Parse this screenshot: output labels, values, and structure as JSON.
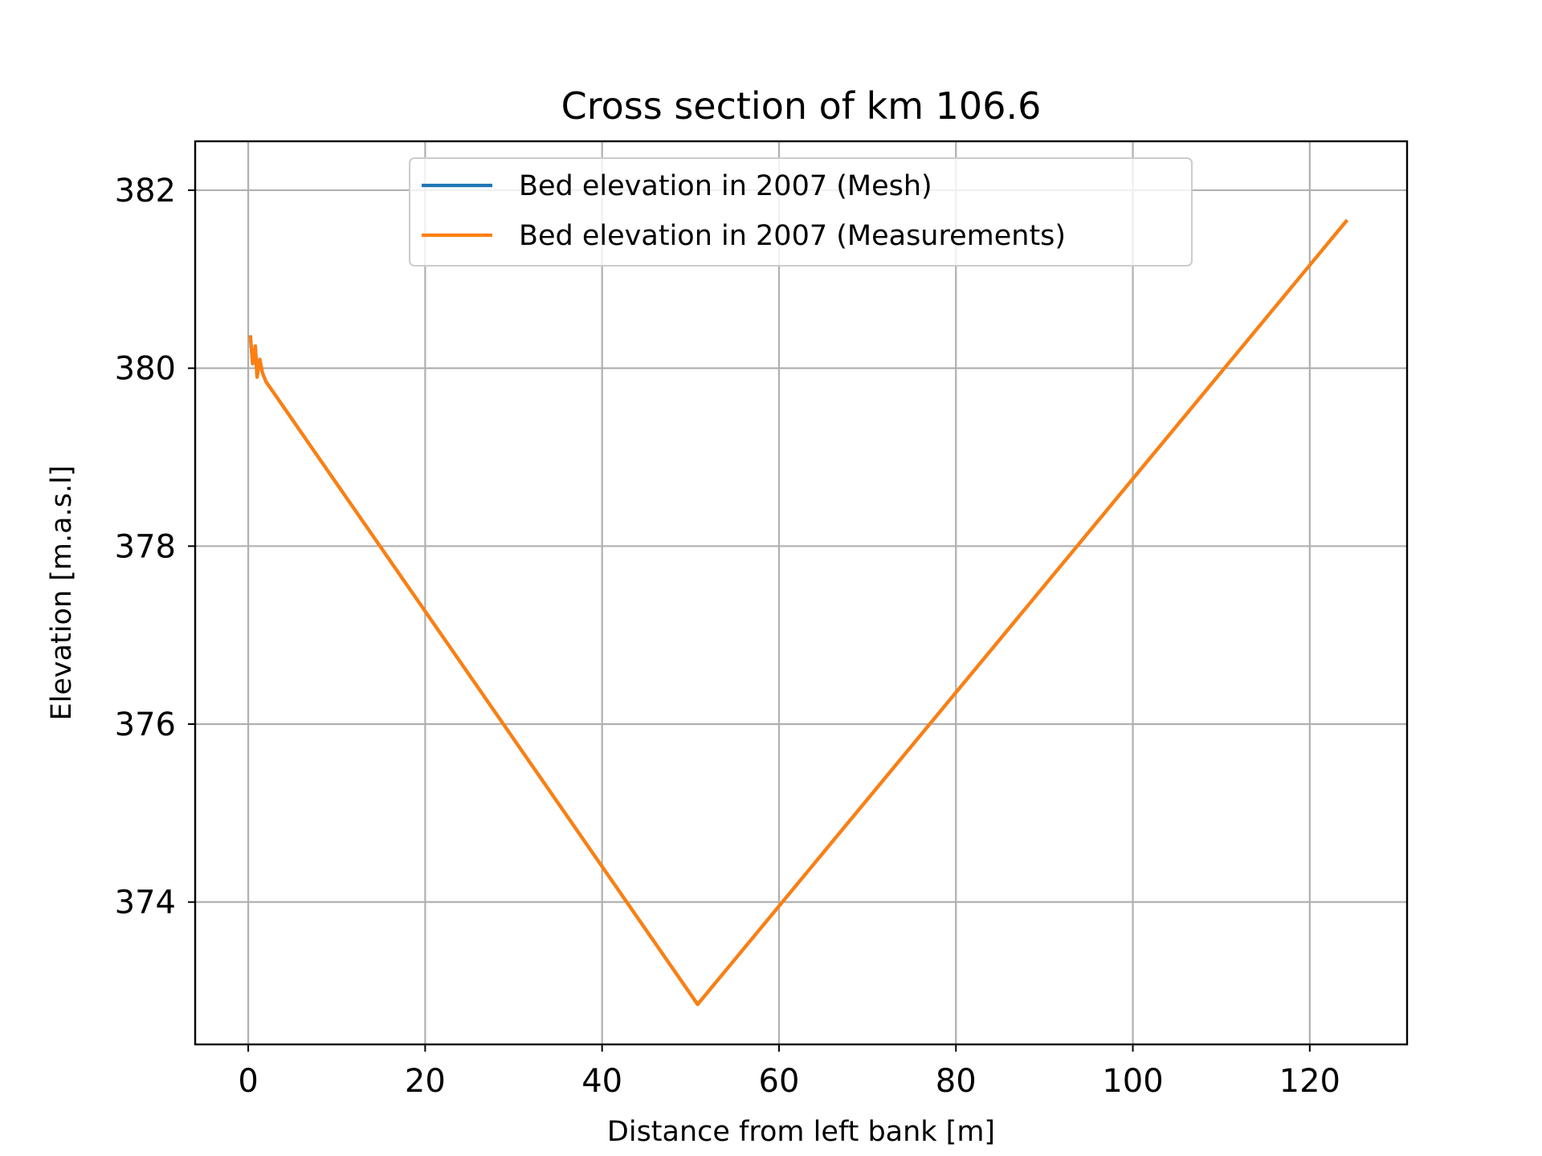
{
  "chart_data": {
    "type": "line",
    "title": "Cross section of km 106.6",
    "xlabel": "Distance from left bank [m]",
    "ylabel": "Elevation [m.a.s.l]",
    "xlim": [
      -6,
      131
    ],
    "ylim": [
      372.4,
      382.55
    ],
    "x_ticks": [
      0,
      20,
      40,
      60,
      80,
      100,
      120
    ],
    "y_ticks": [
      374,
      376,
      378,
      380,
      382
    ],
    "grid": true,
    "legend_position": "upper center",
    "series": [
      {
        "name": "Bed elevation in 2007 (Mesh)",
        "color": "#1f77b4",
        "x": [
          0.25,
          0.5,
          0.8,
          1.0,
          1.3,
          1.6,
          2.0,
          50.8,
          124.1
        ],
        "y": [
          380.35,
          380.05,
          380.25,
          379.9,
          380.1,
          379.95,
          379.85,
          372.85,
          381.65
        ]
      },
      {
        "name": "Bed elevation in 2007 (Measurements)",
        "color": "#ff7f0e",
        "x": [
          0.25,
          0.5,
          0.8,
          1.0,
          1.3,
          1.6,
          2.0,
          50.8,
          124.1
        ],
        "y": [
          380.35,
          380.05,
          380.25,
          379.9,
          380.1,
          379.95,
          379.85,
          372.85,
          381.65
        ]
      }
    ]
  }
}
